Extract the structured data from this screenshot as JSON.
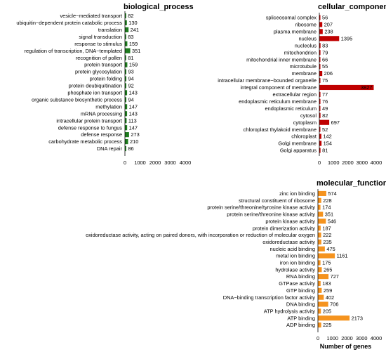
{
  "chart_data": [
    {
      "type": "bar",
      "orientation": "horizontal",
      "title": "biological_process",
      "color": "#1e7b1e",
      "xlim": [
        0,
        4000
      ],
      "ticks": [
        0,
        1000,
        2000,
        3000,
        4000
      ],
      "xlabel": "",
      "categories": [
        "vesicle−mediated transport",
        "ubiquitin−dependent protein catabolic process",
        "translation",
        "signal transduction",
        "response to stimulus",
        "regulation of transcription, DNA−templated",
        "recognition of pollen",
        "protein transport",
        "protein glycosylation",
        "protein folding",
        "protein deubiquitination",
        "phosphate ion transport",
        "organic substance biosynthetic process",
        "methylation",
        "mRNA processing",
        "intracellular protein transport",
        "defense response to fungus",
        "defense response",
        "carbohydrate metabolic process",
        "DNA repair"
      ],
      "values": [
        82,
        130,
        241,
        83,
        159,
        351,
        81,
        159,
        93,
        94,
        92,
        143,
        94,
        147,
        143,
        113,
        147,
        273,
        210,
        86
      ],
      "value_labels": [
        "82",
        "130",
        "241",
        "83",
        "159",
        "351",
        "81",
        "159",
        "93",
        "94",
        "92",
        "143",
        "94",
        "147",
        "143",
        "113",
        "147",
        "273",
        "210",
        "86"
      ]
    },
    {
      "type": "bar",
      "orientation": "horizontal",
      "title": "cellular_component",
      "color": "#c00000",
      "xlim": [
        0,
        4000
      ],
      "ticks": [
        0,
        1000,
        2000,
        3000,
        4000
      ],
      "xlabel": "",
      "categories": [
        "spliceosomal complex",
        "ribosome",
        "plasma membrane",
        "nucleus",
        "nucleolus",
        "mitochondrion",
        "mitochondrial inner membrane",
        "microtubule",
        "membrane",
        "intracellular membrane−bounded organelle",
        "integral component of membrane",
        "extracellular region",
        "endoplasmic reticulum membrane",
        "endoplasmic reticulum",
        "cytosol",
        "cytoplasm",
        "chloroplast thylakoid membrane",
        "chloroplast",
        "Golgi membrane",
        "Golgi apparatus"
      ],
      "values": [
        56,
        207,
        238,
        1395,
        83,
        79,
        66,
        55,
        206,
        75,
        3827,
        77,
        76,
        49,
        82,
        697,
        52,
        142,
        154,
        81
      ],
      "value_labels": [
        "56",
        "207",
        "238",
        "1395",
        "83",
        "79",
        "66",
        "55",
        "206",
        "75",
        "3827",
        "77",
        "76",
        "49",
        "82",
        "697",
        "52",
        "142",
        "154",
        "81"
      ]
    },
    {
      "type": "bar",
      "orientation": "horizontal",
      "title": "molecular_function",
      "color": "#f5931e",
      "xlim": [
        0,
        4000
      ],
      "ticks": [
        0,
        1000,
        2000,
        3000,
        4000
      ],
      "xlabel": "Number of genes",
      "categories": [
        "zinc ion binding",
        "structural constituent of ribosome",
        "protein serine/threonine/tyrosine kinase activity",
        "protein serine/threonine kinase activity",
        "protein kinase activity",
        "protein dimerization activity",
        "oxidoreductase activity, acting on paired donors, with incorporation or reduction of molecular oxygen",
        "oxidoreductase activity",
        "nucleic acid binding",
        "metal ion binding",
        "iron ion binding",
        "hydrolase activity",
        "RNA binding",
        "GTPase activity",
        "GTP binding",
        "DNA−binding  transcription factor activity",
        "DNA binding",
        "ATP hydrolysis activity",
        "ATP binding",
        "ADP binding"
      ],
      "values": [
        574,
        228,
        174,
        351,
        546,
        187,
        222,
        235,
        475,
        1161,
        175,
        265,
        727,
        183,
        259,
        402,
        706,
        205,
        2173,
        225
      ],
      "value_labels": [
        "574",
        "228",
        "174",
        "351",
        "546",
        "187",
        "222",
        "235",
        "475",
        "1161",
        "175",
        "265",
        "727",
        "183",
        "259",
        "402",
        "706",
        "205",
        "2173",
        "225"
      ]
    }
  ]
}
